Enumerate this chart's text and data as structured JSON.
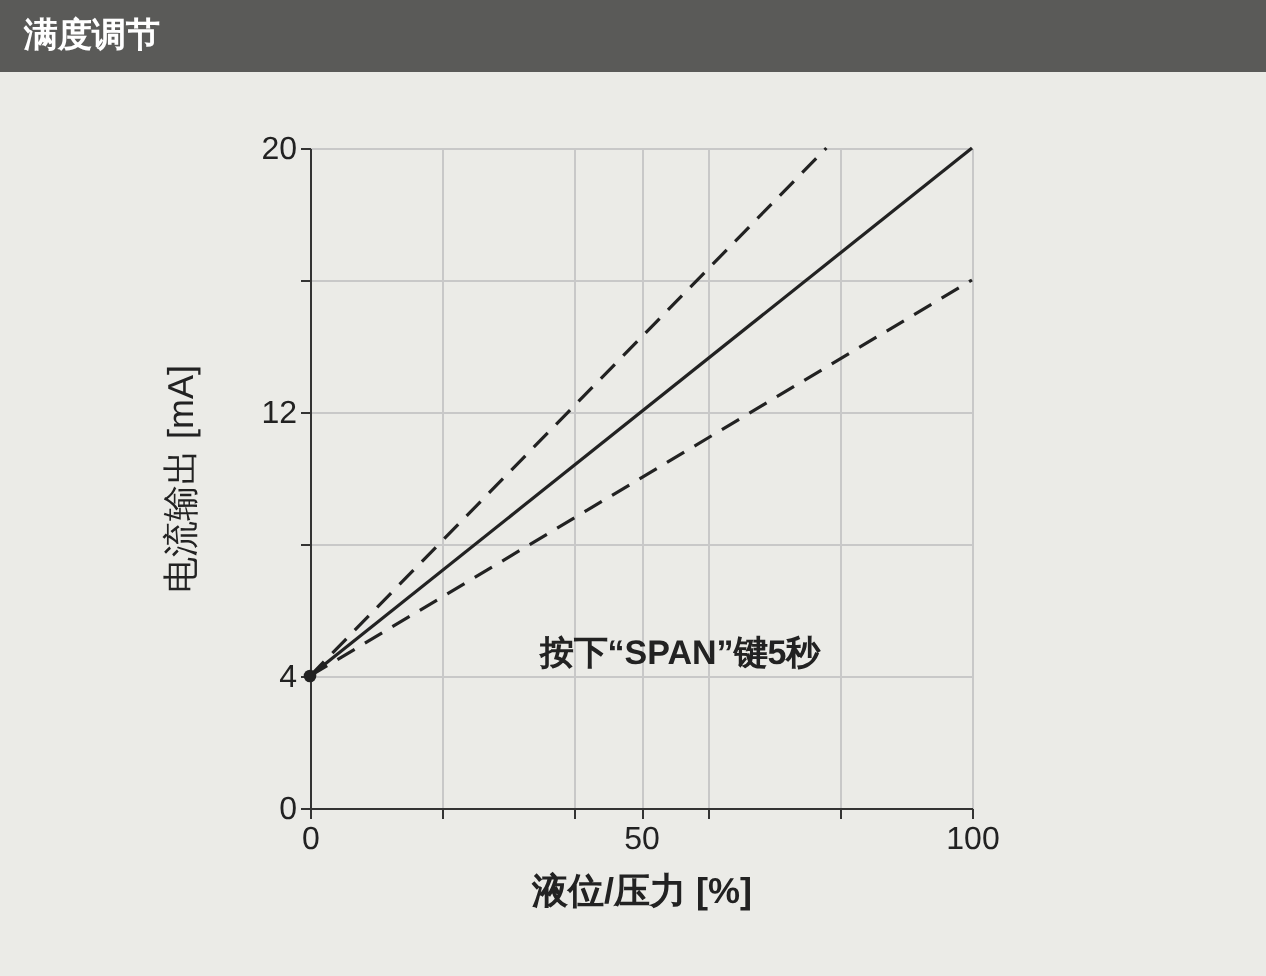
{
  "chart_data": {
    "type": "line",
    "title": "满度调节",
    "xlabel": "液位/压力 [%]",
    "ylabel": "电流输出 [mA]",
    "xlim": [
      0,
      100
    ],
    "ylim": [
      0,
      20
    ],
    "xticks": [
      0,
      {
        "value": 20,
        "label": null
      },
      {
        "value": 40,
        "label": null
      },
      50,
      {
        "value": 60,
        "label": null
      },
      {
        "value": 80,
        "label": null
      },
      100
    ],
    "yticks": [
      0,
      4,
      {
        "value": 8,
        "label": null
      },
      12,
      {
        "value": 16,
        "label": null
      },
      20
    ],
    "grid": true,
    "series": [
      {
        "color": "#222222",
        "x": [
          0,
          100
        ],
        "values": [
          4,
          20
        ],
        "line_style": "solid"
      },
      {
        "color": "#222222",
        "x": [
          0,
          78
        ],
        "values": [
          4,
          20
        ],
        "line_style": "dashed"
      },
      {
        "color": "#222222",
        "x": [
          0,
          100
        ],
        "values": [
          4,
          16
        ],
        "line_style": "dashed"
      },
      {
        "type": "scatter",
        "color": "#222222",
        "x": [
          0
        ],
        "values": [
          4
        ],
        "marker": "circle"
      }
    ],
    "annotations": [
      "按下“SPAN”键5秒"
    ]
  }
}
